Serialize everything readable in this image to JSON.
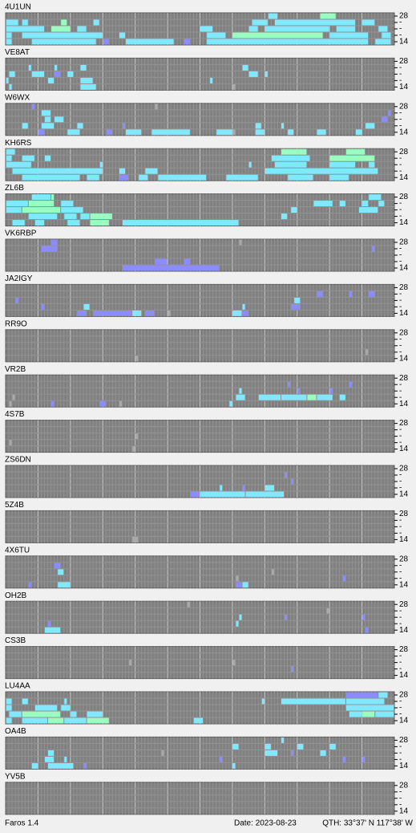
{
  "band_labels": {
    "top": "28",
    "mid": "-",
    "bottom": "14"
  },
  "level_colors": [
    "#a9a9a9",
    "#8c8cff",
    "#80e8ff",
    "#98ffc0"
  ],
  "stations": [
    {
      "name": "4U1UN",
      "runs": [
        [
          0,
          81,
          3,
          2
        ],
        [
          0,
          97,
          5,
          3
        ],
        [
          1,
          0,
          4,
          2
        ],
        [
          1,
          5,
          2,
          2
        ],
        [
          1,
          17,
          2,
          3
        ],
        [
          1,
          27,
          2,
          2
        ],
        [
          1,
          76,
          5,
          2
        ],
        [
          1,
          83,
          25,
          2
        ],
        [
          1,
          110,
          4,
          2
        ],
        [
          2,
          0,
          12,
          2
        ],
        [
          2,
          14,
          6,
          3
        ],
        [
          2,
          22,
          3,
          2
        ],
        [
          2,
          60,
          4,
          2
        ],
        [
          2,
          75,
          3,
          2
        ],
        [
          2,
          80,
          20,
          2
        ],
        [
          2,
          102,
          6,
          2
        ],
        [
          2,
          115,
          3,
          2
        ],
        [
          3,
          0,
          2,
          2
        ],
        [
          3,
          5,
          25,
          2
        ],
        [
          3,
          35,
          2,
          2
        ],
        [
          3,
          62,
          6,
          2
        ],
        [
          3,
          70,
          28,
          3
        ],
        [
          3,
          100,
          12,
          2
        ],
        [
          3,
          116,
          3,
          2
        ],
        [
          4,
          0,
          2,
          2
        ],
        [
          4,
          8,
          20,
          2
        ],
        [
          4,
          30,
          2,
          1
        ],
        [
          4,
          37,
          15,
          2
        ],
        [
          4,
          55,
          2,
          1
        ],
        [
          4,
          62,
          50,
          2
        ],
        [
          4,
          114,
          5,
          2
        ]
      ]
    },
    {
      "name": "VE8AT",
      "runs": [
        [
          1,
          7,
          1,
          2
        ],
        [
          1,
          15,
          1,
          2
        ],
        [
          1,
          23,
          2,
          2
        ],
        [
          1,
          73,
          2,
          2
        ],
        [
          2,
          1,
          2,
          2
        ],
        [
          2,
          8,
          4,
          2
        ],
        [
          2,
          15,
          2,
          1
        ],
        [
          2,
          19,
          2,
          2
        ],
        [
          2,
          75,
          3,
          2
        ],
        [
          2,
          80,
          1,
          2
        ],
        [
          3,
          0,
          1,
          2
        ],
        [
          3,
          13,
          2,
          2
        ],
        [
          3,
          23,
          4,
          2
        ],
        [
          3,
          63,
          1,
          2
        ],
        [
          4,
          1,
          1,
          2
        ],
        [
          4,
          23,
          5,
          2
        ],
        [
          4,
          70,
          1,
          0
        ]
      ]
    },
    {
      "name": "W6WX",
      "runs": [
        [
          0,
          8,
          1,
          1
        ],
        [
          0,
          46,
          1,
          0
        ],
        [
          1,
          11,
          3,
          2
        ],
        [
          1,
          118,
          1,
          1
        ],
        [
          2,
          12,
          2,
          2
        ],
        [
          2,
          15,
          3,
          2
        ],
        [
          2,
          116,
          2,
          1
        ],
        [
          3,
          5,
          2,
          2
        ],
        [
          3,
          11,
          4,
          2
        ],
        [
          3,
          22,
          2,
          2
        ],
        [
          3,
          36,
          1,
          1
        ],
        [
          3,
          77,
          2,
          2
        ],
        [
          3,
          85,
          1,
          2
        ],
        [
          3,
          111,
          3,
          2
        ],
        [
          4,
          10,
          2,
          1
        ],
        [
          4,
          19,
          4,
          2
        ],
        [
          4,
          31,
          2,
          1
        ],
        [
          4,
          37,
          5,
          2
        ],
        [
          4,
          45,
          12,
          2
        ],
        [
          4,
          65,
          5,
          2
        ],
        [
          4,
          70,
          1,
          0
        ],
        [
          4,
          77,
          3,
          2
        ],
        [
          4,
          87,
          2,
          2
        ],
        [
          4,
          96,
          3,
          2
        ],
        [
          4,
          108,
          2,
          2
        ]
      ]
    },
    {
      "name": "KH6RS",
      "runs": [
        [
          0,
          0,
          3,
          2
        ],
        [
          0,
          85,
          8,
          3
        ],
        [
          0,
          105,
          6,
          3
        ],
        [
          1,
          0,
          2,
          2
        ],
        [
          1,
          5,
          4,
          2
        ],
        [
          1,
          12,
          2,
          2
        ],
        [
          1,
          82,
          12,
          2
        ],
        [
          1,
          100,
          14,
          3
        ],
        [
          2,
          0,
          8,
          2
        ],
        [
          2,
          29,
          1,
          2
        ],
        [
          2,
          75,
          1,
          2
        ],
        [
          2,
          83,
          10,
          2
        ],
        [
          2,
          100,
          8,
          2
        ],
        [
          2,
          112,
          2,
          2
        ],
        [
          3,
          2,
          28,
          2
        ],
        [
          3,
          35,
          2,
          2
        ],
        [
          3,
          43,
          4,
          2
        ],
        [
          3,
          80,
          35,
          2
        ],
        [
          4,
          5,
          18,
          2
        ],
        [
          4,
          25,
          4,
          2
        ],
        [
          4,
          35,
          3,
          1
        ],
        [
          4,
          41,
          3,
          2
        ],
        [
          4,
          47,
          15,
          2
        ],
        [
          4,
          68,
          10,
          2
        ],
        [
          4,
          87,
          8,
          2
        ],
        [
          4,
          100,
          6,
          2
        ]
      ]
    },
    {
      "name": "ZL6B",
      "runs": [
        [
          0,
          8,
          6,
          2
        ],
        [
          0,
          14,
          1,
          3
        ],
        [
          0,
          112,
          4,
          2
        ],
        [
          1,
          0,
          7,
          2
        ],
        [
          1,
          7,
          8,
          3
        ],
        [
          1,
          17,
          4,
          2
        ],
        [
          1,
          95,
          6,
          2
        ],
        [
          1,
          103,
          2,
          2
        ],
        [
          1,
          110,
          2,
          2
        ],
        [
          1,
          115,
          2,
          2
        ],
        [
          2,
          0,
          5,
          2
        ],
        [
          2,
          5,
          12,
          3
        ],
        [
          2,
          17,
          7,
          2
        ],
        [
          2,
          88,
          2,
          2
        ],
        [
          2,
          109,
          6,
          2
        ],
        [
          3,
          7,
          9,
          2
        ],
        [
          3,
          18,
          4,
          2
        ],
        [
          3,
          23,
          3,
          2
        ],
        [
          3,
          26,
          7,
          3
        ],
        [
          3,
          85,
          2,
          2
        ],
        [
          4,
          2,
          4,
          2
        ],
        [
          4,
          9,
          3,
          2
        ],
        [
          4,
          19,
          4,
          2
        ],
        [
          4,
          26,
          6,
          3
        ],
        [
          4,
          36,
          36,
          2
        ]
      ]
    },
    {
      "name": "VK6RBP",
      "runs": [
        [
          0,
          14,
          2,
          1
        ],
        [
          0,
          72,
          1,
          0
        ],
        [
          1,
          11,
          5,
          1
        ],
        [
          1,
          113,
          1,
          1
        ],
        [
          3,
          46,
          4,
          1
        ],
        [
          3,
          55,
          2,
          1
        ],
        [
          4,
          36,
          30,
          1
        ]
      ]
    },
    {
      "name": "JA2IGY",
      "runs": [
        [
          1,
          96,
          2,
          1
        ],
        [
          1,
          106,
          1,
          1
        ],
        [
          1,
          112,
          2,
          1
        ],
        [
          2,
          3,
          1,
          1
        ],
        [
          2,
          89,
          2,
          2
        ],
        [
          3,
          11,
          1,
          1
        ],
        [
          3,
          24,
          2,
          2
        ],
        [
          3,
          73,
          1,
          2
        ],
        [
          3,
          88,
          3,
          1
        ],
        [
          4,
          22,
          3,
          1
        ],
        [
          4,
          27,
          12,
          1
        ],
        [
          4,
          39,
          3,
          2
        ],
        [
          4,
          43,
          3,
          1
        ],
        [
          4,
          50,
          1,
          0
        ],
        [
          4,
          70,
          3,
          2
        ],
        [
          4,
          73,
          2,
          1
        ]
      ]
    },
    {
      "name": "RR9O",
      "runs": [
        [
          3,
          111,
          1,
          0
        ],
        [
          4,
          40,
          1,
          0
        ]
      ]
    },
    {
      "name": "VR2B",
      "runs": [
        [
          1,
          87,
          1,
          1
        ],
        [
          1,
          106,
          1,
          1
        ],
        [
          2,
          72,
          1,
          2
        ],
        [
          2,
          90,
          1,
          1
        ],
        [
          2,
          100,
          1,
          1
        ],
        [
          3,
          2,
          1,
          0
        ],
        [
          3,
          71,
          3,
          2
        ],
        [
          3,
          78,
          7,
          2
        ],
        [
          3,
          85,
          8,
          2
        ],
        [
          3,
          93,
          3,
          3
        ],
        [
          3,
          96,
          5,
          2
        ],
        [
          3,
          103,
          2,
          2
        ],
        [
          4,
          1,
          1,
          0
        ],
        [
          4,
          14,
          1,
          1
        ],
        [
          4,
          29,
          2,
          1
        ],
        [
          4,
          35,
          1,
          0
        ],
        [
          4,
          69,
          1,
          2
        ]
      ]
    },
    {
      "name": "4S7B",
      "runs": [
        [
          2,
          40,
          1,
          0
        ],
        [
          3,
          1,
          1,
          0
        ],
        [
          4,
          39,
          1,
          0
        ]
      ]
    },
    {
      "name": "ZS6DN",
      "runs": [
        [
          1,
          86,
          1,
          1
        ],
        [
          2,
          88,
          1,
          1
        ],
        [
          3,
          66,
          1,
          2
        ],
        [
          3,
          73,
          1,
          1
        ],
        [
          3,
          80,
          3,
          2
        ],
        [
          4,
          57,
          3,
          1
        ],
        [
          4,
          60,
          14,
          2
        ],
        [
          4,
          74,
          12,
          2
        ]
      ]
    },
    {
      "name": "5Z4B",
      "runs": [
        [
          4,
          39,
          2,
          0
        ]
      ]
    },
    {
      "name": "4X6TU",
      "runs": [
        [
          1,
          15,
          2,
          1
        ],
        [
          2,
          16,
          2,
          2
        ],
        [
          2,
          82,
          1,
          0
        ],
        [
          3,
          71,
          1,
          0
        ],
        [
          3,
          104,
          1,
          1
        ],
        [
          4,
          7,
          1,
          1
        ],
        [
          4,
          16,
          4,
          2
        ],
        [
          4,
          71,
          2,
          1
        ],
        [
          4,
          73,
          2,
          2
        ]
      ]
    },
    {
      "name": "OH2B",
      "runs": [
        [
          0,
          56,
          1,
          0
        ],
        [
          1,
          99,
          1,
          0
        ],
        [
          2,
          72,
          1,
          2
        ],
        [
          2,
          86,
          1,
          1
        ],
        [
          2,
          110,
          1,
          1
        ],
        [
          3,
          13,
          1,
          1
        ],
        [
          3,
          71,
          1,
          2
        ],
        [
          4,
          12,
          5,
          2
        ],
        [
          4,
          111,
          1,
          1
        ]
      ]
    },
    {
      "name": "CS3B",
      "runs": [
        [
          2,
          38,
          1,
          0
        ],
        [
          2,
          70,
          1,
          0
        ],
        [
          3,
          88,
          1,
          1
        ]
      ]
    },
    {
      "name": "LU4AA",
      "runs": [
        [
          0,
          105,
          10,
          1
        ],
        [
          0,
          115,
          3,
          2
        ],
        [
          1,
          0,
          2,
          2
        ],
        [
          1,
          5,
          2,
          2
        ],
        [
          1,
          18,
          1,
          2
        ],
        [
          1,
          79,
          1,
          2
        ],
        [
          1,
          85,
          20,
          2
        ],
        [
          1,
          105,
          12,
          2
        ],
        [
          2,
          0,
          2,
          2
        ],
        [
          2,
          9,
          7,
          2
        ],
        [
          2,
          17,
          3,
          2
        ],
        [
          2,
          105,
          15,
          2
        ],
        [
          3,
          1,
          4,
          2
        ],
        [
          3,
          5,
          12,
          3
        ],
        [
          3,
          20,
          2,
          2
        ],
        [
          3,
          25,
          5,
          2
        ],
        [
          3,
          106,
          4,
          2
        ],
        [
          3,
          110,
          4,
          3
        ],
        [
          3,
          114,
          6,
          2
        ],
        [
          4,
          0,
          2,
          2
        ],
        [
          4,
          5,
          8,
          2
        ],
        [
          4,
          13,
          5,
          3
        ],
        [
          4,
          18,
          7,
          2
        ],
        [
          4,
          25,
          7,
          3
        ],
        [
          4,
          58,
          3,
          2
        ]
      ]
    },
    {
      "name": "OA4B",
      "runs": [
        [
          0,
          85,
          1,
          2
        ],
        [
          1,
          70,
          2,
          2
        ],
        [
          1,
          80,
          2,
          2
        ],
        [
          1,
          90,
          2,
          2
        ],
        [
          1,
          100,
          2,
          2
        ],
        [
          2,
          13,
          2,
          2
        ],
        [
          2,
          48,
          1,
          0
        ],
        [
          2,
          80,
          4,
          2
        ],
        [
          2,
          88,
          1,
          1
        ],
        [
          2,
          97,
          2,
          2
        ],
        [
          3,
          12,
          3,
          2
        ],
        [
          3,
          18,
          1,
          2
        ],
        [
          3,
          66,
          1,
          1
        ],
        [
          3,
          104,
          1,
          1
        ],
        [
          3,
          110,
          1,
          1
        ],
        [
          4,
          8,
          2,
          2
        ],
        [
          4,
          13,
          8,
          2
        ],
        [
          4,
          24,
          1,
          1
        ],
        [
          4,
          70,
          1,
          2
        ]
      ]
    },
    {
      "name": "YV5B",
      "runs": []
    }
  ],
  "footer": {
    "app": "Faros 1.4",
    "date": "Date: 2023-08-23",
    "qth": "QTH: 33°37' N  117°38' W"
  }
}
